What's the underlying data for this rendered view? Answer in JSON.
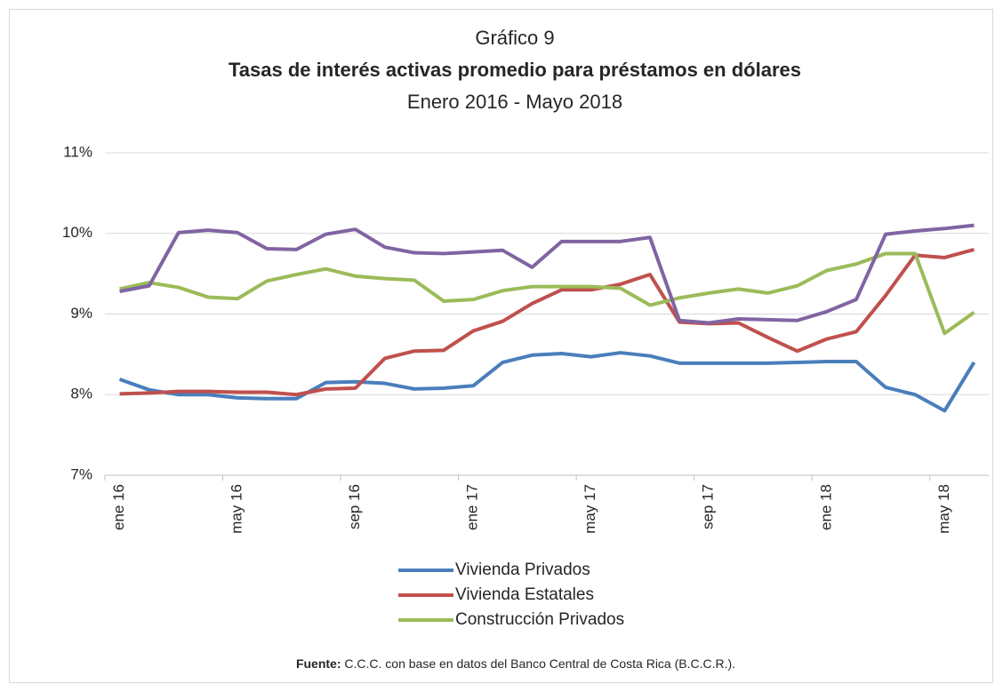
{
  "chart_data": {
    "type": "line",
    "title": "Gráfico 9",
    "subtitle": "Tasas de interés activas promedio para préstamos en dólares",
    "period": "Enero 2016 - Mayo 2018",
    "source_label": "Fuente:",
    "source": "C.C.C. con base en datos del Banco Central de Costa Rica (B.C.C.R.).",
    "categories": [
      "ene 16",
      null,
      null,
      null,
      "may 16",
      null,
      null,
      null,
      "sep 16",
      null,
      null,
      null,
      "ene 17",
      null,
      null,
      null,
      "may 17",
      null,
      null,
      null,
      "sep 17",
      null,
      null,
      null,
      "ene 18",
      null,
      null,
      null,
      "may 18",
      null
    ],
    "series": [
      {
        "name": "Vivienda Privados",
        "color": "#4a7ebb",
        "values": [
          8.19,
          8.06,
          8.0,
          8.0,
          7.96,
          7.95,
          7.95,
          8.15,
          8.16,
          8.14,
          8.07,
          8.08,
          8.11,
          8.4,
          8.49,
          8.51,
          8.47,
          8.52,
          8.48,
          8.39,
          8.39,
          8.39,
          8.39,
          8.4,
          8.41,
          8.41,
          8.09,
          8.0,
          7.8,
          8.4
        ]
      },
      {
        "name": "Vivienda Estatales",
        "color": "#c0504d",
        "values": [
          8.01,
          8.02,
          8.04,
          8.04,
          8.03,
          8.03,
          8.0,
          8.07,
          8.08,
          8.45,
          8.54,
          8.55,
          8.79,
          8.91,
          9.13,
          9.3,
          9.3,
          9.37,
          9.49,
          8.9,
          8.88,
          8.89,
          8.71,
          8.54,
          8.69,
          8.78,
          9.23,
          9.73,
          9.7,
          9.8
        ]
      },
      {
        "name": "Construcción Privados",
        "color": "#9bbb59",
        "values": [
          9.31,
          9.39,
          9.33,
          9.21,
          9.19,
          9.41,
          9.49,
          9.56,
          9.47,
          9.44,
          9.42,
          9.16,
          9.18,
          9.29,
          9.34,
          9.34,
          9.34,
          9.32,
          9.11,
          9.2,
          9.26,
          9.31,
          9.26,
          9.35,
          9.54,
          9.62,
          9.75,
          9.75,
          8.76,
          9.02
        ]
      },
      {
        "color": "#8064a2",
        "values": [
          9.28,
          9.35,
          10.01,
          10.04,
          10.01,
          9.81,
          9.8,
          9.99,
          10.05,
          9.83,
          9.76,
          9.75,
          9.77,
          9.79,
          9.58,
          9.9,
          9.9,
          9.9,
          9.95,
          8.92,
          8.89,
          8.94,
          8.93,
          8.92,
          9.03,
          9.18,
          9.99,
          10.03,
          10.06,
          10.1
        ]
      }
    ],
    "ylim": [
      7,
      11
    ],
    "yticks": [
      {
        "value": 7,
        "label": "7%"
      },
      {
        "value": 8,
        "label": "8%"
      },
      {
        "value": 9,
        "label": "9%"
      },
      {
        "value": 10,
        "label": "10%"
      },
      {
        "value": 11,
        "label": "11%"
      }
    ],
    "grid": true
  }
}
